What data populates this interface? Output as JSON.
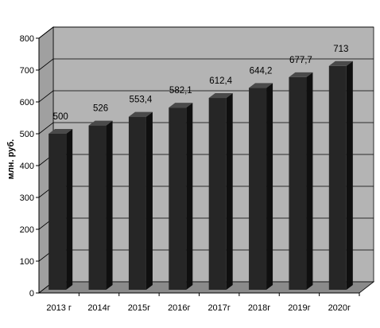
{
  "chart_data": {
    "type": "bar",
    "ylabel": "млн. руб.",
    "categories": [
      "2013 г",
      "2014г",
      "2015г",
      "2016г",
      "2017г",
      "2018г",
      "2019г",
      "2020г"
    ],
    "values": [
      500,
      526,
      553.4,
      582.1,
      612.4,
      644.2,
      677.7,
      713
    ],
    "data_labels": [
      "500",
      "526",
      "553,4",
      "582,1",
      "612,4",
      "644,2",
      "677,7",
      "713"
    ],
    "y_ticks": [
      "0",
      "100",
      "200",
      "300",
      "400",
      "500",
      "600",
      "700",
      "800"
    ],
    "ylim": [
      0,
      800
    ],
    "grid": true,
    "style": "3d-bar",
    "colors": {
      "bar_front": "#262626",
      "bar_top": "#4a4a4a",
      "bar_side": "#0f0f0f",
      "wall": "#b4b4b4",
      "floor": "#8a8a8a",
      "grid": "#000000"
    }
  }
}
